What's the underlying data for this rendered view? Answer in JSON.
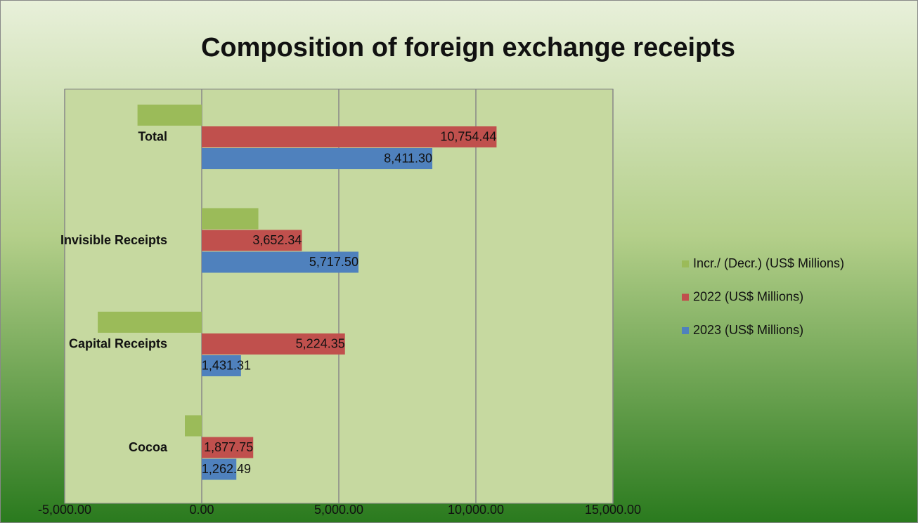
{
  "chart_data": {
    "type": "hbar",
    "title": "Composition of foreign exchange receipts",
    "categories": [
      "Total",
      "Invisible Receipts",
      "Capital Receipts",
      "Cocoa"
    ],
    "series": [
      {
        "name": "Incr./ (Decr.)  (US$ Millions)",
        "color": "#9bbb59",
        "values": [
          -2343.14,
          2065.16,
          -3793.04,
          -615.26
        ]
      },
      {
        "name": "2022 (US$ Millions)",
        "color": "#c0504d",
        "values": [
          10754.44,
          3652.34,
          5224.35,
          1877.75
        ],
        "value_labels": [
          "10,754.44",
          "3,652.34",
          "5,224.35",
          "1,877.75"
        ]
      },
      {
        "name": "2023 (US$ Millions)",
        "color": "#4f81bd",
        "values": [
          8411.3,
          5717.5,
          1431.31,
          1262.49
        ],
        "value_labels": [
          "8,411.30",
          "5,717.50",
          "1,431.31",
          "1,262.49"
        ]
      }
    ],
    "xlim": [
      -5000,
      15000
    ],
    "xticks": [
      {
        "value": -5000,
        "label": "-5,000.00"
      },
      {
        "value": 0,
        "label": "0.00"
      },
      {
        "value": 5000,
        "label": "5,000.00"
      },
      {
        "value": 10000,
        "label": "10,000.00"
      },
      {
        "value": 15000,
        "label": "15,000.00"
      }
    ],
    "grid": true,
    "legend": "right"
  }
}
